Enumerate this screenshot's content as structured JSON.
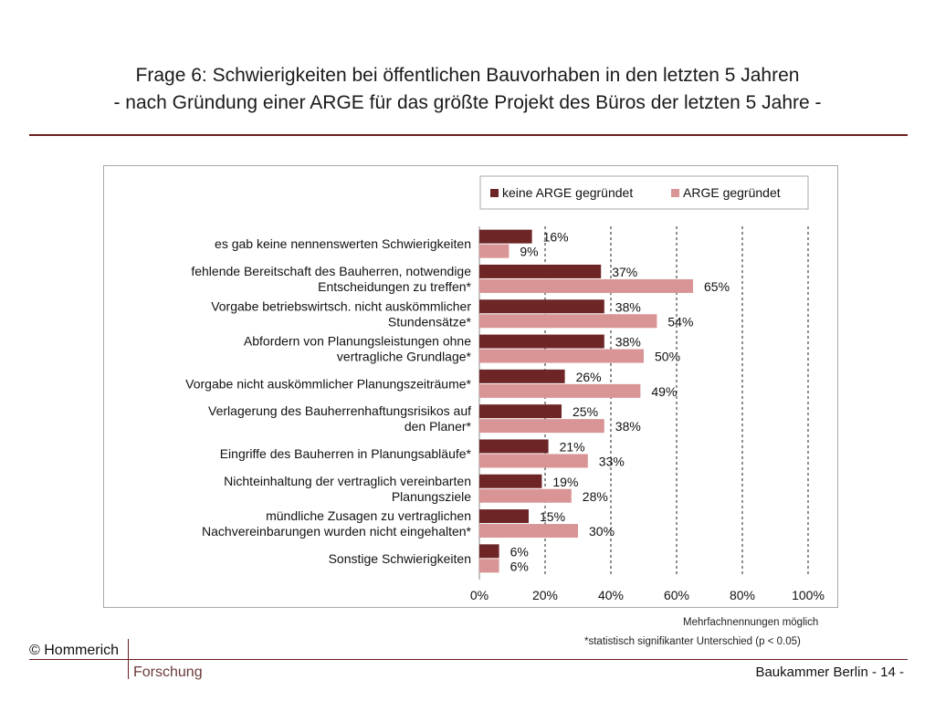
{
  "header": {
    "title_line1": "Frage 6: Schwierigkeiten bei öffentlichen Bauvorhaben in den letzten 5 Jahren",
    "title_line2": "- nach Gründung einer ARGE für das größte Projekt des Büros der letzten 5 Jahre -"
  },
  "colors": {
    "series1": "#6e2526",
    "series2": "#d99596",
    "rule": "#6b1f1f"
  },
  "chart_data": {
    "type": "bar",
    "orientation": "horizontal",
    "categories": [
      [
        "es gab keine nennenswerten Schwierigkeiten"
      ],
      [
        "fehlende Bereitschaft des Bauherren, notwendige",
        "Entscheidungen zu treffen*"
      ],
      [
        "Vorgabe betriebswirtsch. nicht auskömmlicher",
        "Stundensätze*"
      ],
      [
        "Abfordern von Planungsleistungen ohne",
        "vertragliche Grundlage*"
      ],
      [
        "Vorgabe nicht auskömmlicher Planungszeiträume*"
      ],
      [
        "Verlagerung des Bauherrenhaftungsrisikos auf",
        "den Planer*"
      ],
      [
        "Eingriffe des Bauherren in Planungsabläufe*"
      ],
      [
        "Nichteinhaltung der vertraglich vereinbarten",
        "Planungsziele"
      ],
      [
        "mündliche Zusagen zu vertraglichen",
        "Nachvereinbarungen wurden nicht eingehalten*"
      ],
      [
        "Sonstige Schwierigkeiten"
      ]
    ],
    "series": [
      {
        "name": "keine ARGE gegründet",
        "values": [
          16,
          37,
          38,
          38,
          26,
          25,
          21,
          19,
          15,
          6
        ]
      },
      {
        "name": "ARGE gegründet",
        "values": [
          9,
          65,
          54,
          50,
          49,
          38,
          33,
          28,
          30,
          6
        ]
      }
    ],
    "value_suffix": "%",
    "xlim": [
      0,
      100
    ],
    "xticks": [
      0,
      20,
      40,
      60,
      80,
      100
    ],
    "xtick_labels": [
      "0%",
      "20%",
      "40%",
      "60%",
      "80%",
      "100%"
    ],
    "gridlines": "dashed vertical",
    "legend_position": "top-right"
  },
  "notes": {
    "multiple": "Mehrfachnennungen möglich",
    "significance": "*statistisch signifikanter Unterschied  (p < 0.05)"
  },
  "footer": {
    "copyright": "© Hommerich",
    "brand": "Forschung",
    "right": "Baukammer Berlin   - 14 -"
  }
}
